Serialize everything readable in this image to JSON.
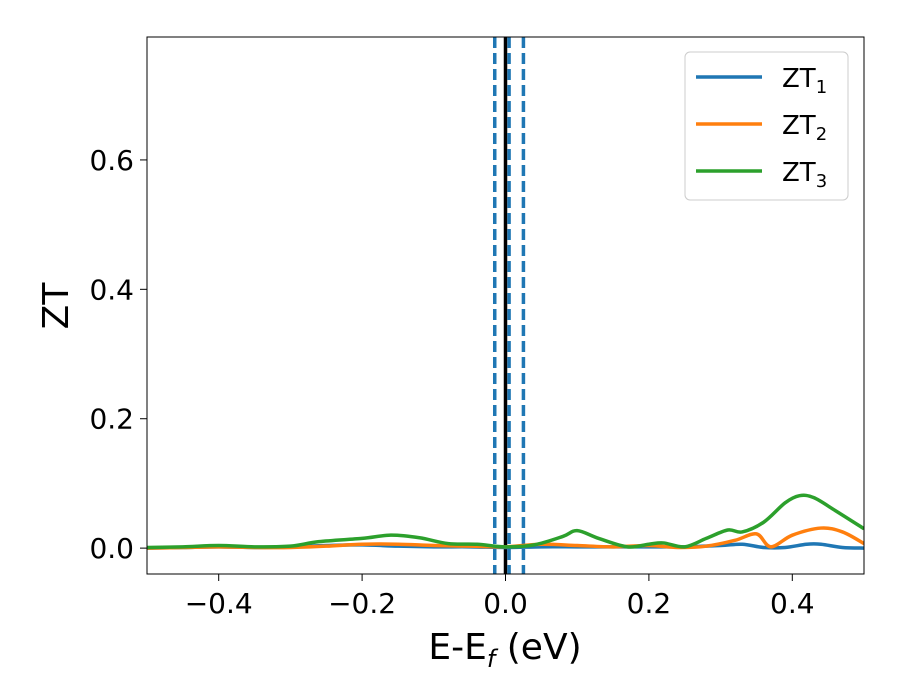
{
  "chart_data": {
    "type": "line",
    "title": "",
    "xlabel": {
      "main": "E-E",
      "sub": "f",
      "suffix": " (eV)"
    },
    "ylabel": "ZT",
    "xlim": [
      -0.5,
      0.5
    ],
    "ylim": [
      -0.04,
      0.79
    ],
    "x_ticks": [
      -0.4,
      -0.2,
      0.0,
      0.2,
      0.4
    ],
    "x_tick_labels": [
      "−0.4",
      "−0.2",
      "0.0",
      "0.2",
      "0.4"
    ],
    "y_ticks": [
      0.0,
      0.2,
      0.4,
      0.6
    ],
    "y_tick_labels": [
      "0.0",
      "0.2",
      "0.4",
      "0.6"
    ],
    "grid": false,
    "legend_position": "top-right",
    "series": [
      {
        "name": "ZT",
        "sub": "1",
        "color": "#1f77b4",
        "x": [
          -0.5,
          -0.45,
          -0.4,
          -0.35,
          -0.3,
          -0.25,
          -0.2,
          -0.15,
          -0.1,
          -0.05,
          0.0,
          0.05,
          0.1,
          0.15,
          0.2,
          0.25,
          0.3,
          0.33,
          0.36,
          0.39,
          0.42,
          0.44,
          0.47,
          0.5
        ],
        "y": [
          0.0,
          0.001,
          0.002,
          0.001,
          0.002,
          0.004,
          0.005,
          0.003,
          0.002,
          0.002,
          0.001,
          0.002,
          0.002,
          0.002,
          0.002,
          0.002,
          0.004,
          0.006,
          0.001,
          0.001,
          0.006,
          0.006,
          0.001,
          0.0
        ]
      },
      {
        "name": "ZT",
        "sub": "2",
        "color": "#ff7f0e",
        "x": [
          -0.5,
          -0.45,
          -0.4,
          -0.35,
          -0.3,
          -0.25,
          -0.2,
          -0.15,
          -0.1,
          -0.05,
          0.0,
          0.05,
          0.1,
          0.15,
          0.2,
          0.24,
          0.28,
          0.32,
          0.35,
          0.37,
          0.4,
          0.44,
          0.47,
          0.5
        ],
        "y": [
          0.0,
          0.001,
          0.002,
          0.001,
          0.001,
          0.003,
          0.006,
          0.006,
          0.004,
          0.003,
          0.002,
          0.006,
          0.004,
          0.002,
          0.004,
          0.001,
          0.003,
          0.012,
          0.022,
          0.002,
          0.02,
          0.031,
          0.025,
          0.007
        ]
      },
      {
        "name": "ZT",
        "sub": "3",
        "color": "#2ca02c",
        "x": [
          -0.5,
          -0.45,
          -0.4,
          -0.35,
          -0.3,
          -0.26,
          -0.2,
          -0.16,
          -0.12,
          -0.08,
          -0.04,
          0.0,
          0.04,
          0.08,
          0.1,
          0.13,
          0.17,
          0.2,
          0.22,
          0.25,
          0.28,
          0.31,
          0.33,
          0.36,
          0.39,
          0.41,
          0.43,
          0.46,
          0.5
        ],
        "y": [
          0.001,
          0.002,
          0.004,
          0.002,
          0.003,
          0.01,
          0.015,
          0.02,
          0.016,
          0.007,
          0.006,
          0.002,
          0.005,
          0.018,
          0.027,
          0.015,
          0.002,
          0.006,
          0.008,
          0.002,
          0.015,
          0.028,
          0.025,
          0.04,
          0.07,
          0.081,
          0.078,
          0.058,
          0.03
        ]
      }
    ],
    "vertical_lines": [
      {
        "x": 0.0,
        "color": "#000000",
        "style": "solid"
      },
      {
        "x": -0.015,
        "color": "#1f77b4",
        "style": "dashed"
      },
      {
        "x": 0.005,
        "color": "#1f77b4",
        "style": "dashed"
      },
      {
        "x": 0.025,
        "color": "#1f77b4",
        "style": "dashed"
      }
    ]
  }
}
